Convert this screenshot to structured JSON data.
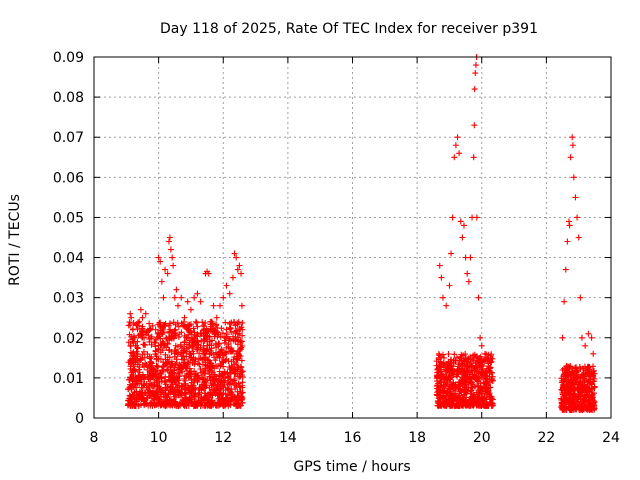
{
  "chart_data": {
    "type": "scatter",
    "title": "Day 118 of 2025, Rate Of TEC Index for receiver p391",
    "xlabel": "GPS time / hours",
    "ylabel": "ROTI / TECUs",
    "xlim": [
      8,
      24
    ],
    "ylim": [
      0,
      0.09
    ],
    "xticks": [
      8,
      10,
      12,
      14,
      16,
      18,
      20,
      22,
      24
    ],
    "yticks": [
      0,
      0.01,
      0.02,
      0.03,
      0.04,
      0.05,
      0.06,
      0.07,
      0.08,
      0.09
    ],
    "ytick_labels": [
      "0",
      "0.01",
      "0.02",
      "0.03",
      "0.04",
      "0.05",
      "0.06",
      "0.07",
      "0.08",
      "0.09"
    ],
    "grid": true,
    "marker": "+",
    "marker_color": "#ff0000",
    "series": [
      {
        "name": "ROTI",
        "points": [
          [
            9.12,
            0.026
          ],
          [
            9.15,
            0.025
          ],
          [
            9.2,
            0.022
          ],
          [
            9.25,
            0.02
          ],
          [
            9.3,
            0.018
          ],
          [
            9.35,
            0.016
          ],
          [
            9.4,
            0.024
          ],
          [
            9.45,
            0.027
          ],
          [
            9.5,
            0.025
          ],
          [
            9.55,
            0.02
          ],
          [
            9.6,
            0.026
          ],
          [
            9.65,
            0.012
          ],
          [
            9.7,
            0.008
          ],
          [
            9.75,
            0.014
          ],
          [
            9.8,
            0.011
          ],
          [
            9.85,
            0.006
          ],
          [
            9.95,
            0.02
          ],
          [
            10.0,
            0.04
          ],
          [
            10.05,
            0.039
          ],
          [
            10.1,
            0.034
          ],
          [
            10.15,
            0.03
          ],
          [
            10.2,
            0.037
          ],
          [
            10.28,
            0.036
          ],
          [
            10.32,
            0.044
          ],
          [
            10.35,
            0.045
          ],
          [
            10.38,
            0.042
          ],
          [
            10.42,
            0.04
          ],
          [
            10.45,
            0.038
          ],
          [
            10.5,
            0.03
          ],
          [
            10.55,
            0.032
          ],
          [
            10.6,
            0.028
          ],
          [
            10.7,
            0.03
          ],
          [
            10.8,
            0.025
          ],
          [
            10.9,
            0.029
          ],
          [
            11.0,
            0.027
          ],
          [
            11.1,
            0.03
          ],
          [
            11.2,
            0.031
          ],
          [
            11.3,
            0.029
          ],
          [
            11.45,
            0.036
          ],
          [
            11.5,
            0.0365
          ],
          [
            11.55,
            0.036
          ],
          [
            11.6,
            0.024
          ],
          [
            11.7,
            0.028
          ],
          [
            11.8,
            0.025
          ],
          [
            11.9,
            0.028
          ],
          [
            12.0,
            0.03
          ],
          [
            12.1,
            0.033
          ],
          [
            12.2,
            0.031
          ],
          [
            12.3,
            0.035
          ],
          [
            12.35,
            0.041
          ],
          [
            12.4,
            0.04
          ],
          [
            12.45,
            0.037
          ],
          [
            12.5,
            0.038
          ],
          [
            12.55,
            0.036
          ],
          [
            12.58,
            0.028
          ],
          [
            18.7,
            0.038
          ],
          [
            18.75,
            0.035
          ],
          [
            18.8,
            0.03
          ],
          [
            18.9,
            0.028
          ],
          [
            19.0,
            0.033
          ],
          [
            19.05,
            0.041
          ],
          [
            19.1,
            0.05
          ],
          [
            19.15,
            0.065
          ],
          [
            19.2,
            0.068
          ],
          [
            19.25,
            0.07
          ],
          [
            19.3,
            0.066
          ],
          [
            19.35,
            0.049
          ],
          [
            19.4,
            0.045
          ],
          [
            19.45,
            0.048
          ],
          [
            19.5,
            0.04
          ],
          [
            19.55,
            0.036
          ],
          [
            19.6,
            0.034
          ],
          [
            19.65,
            0.04
          ],
          [
            19.7,
            0.05
          ],
          [
            19.75,
            0.065
          ],
          [
            19.77,
            0.073
          ],
          [
            19.78,
            0.082
          ],
          [
            19.8,
            0.086
          ],
          [
            19.82,
            0.088
          ],
          [
            19.84,
            0.09
          ],
          [
            19.85,
            0.05
          ],
          [
            19.9,
            0.03
          ],
          [
            19.95,
            0.02
          ],
          [
            20.0,
            0.018
          ],
          [
            20.1,
            0.016
          ],
          [
            20.2,
            0.015
          ],
          [
            20.3,
            0.014
          ],
          [
            22.5,
            0.02
          ],
          [
            22.55,
            0.029
          ],
          [
            22.6,
            0.037
          ],
          [
            22.65,
            0.044
          ],
          [
            22.7,
            0.049
          ],
          [
            22.72,
            0.048
          ],
          [
            22.75,
            0.065
          ],
          [
            22.8,
            0.07
          ],
          [
            22.82,
            0.068
          ],
          [
            22.85,
            0.06
          ],
          [
            22.9,
            0.055
          ],
          [
            22.95,
            0.05
          ],
          [
            23.0,
            0.045
          ],
          [
            23.05,
            0.03
          ],
          [
            23.1,
            0.02
          ],
          [
            23.2,
            0.018
          ],
          [
            23.3,
            0.021
          ],
          [
            23.4,
            0.02
          ],
          [
            23.45,
            0.016
          ]
        ]
      }
    ],
    "dense_clusters": [
      {
        "x_range": [
          9.05,
          12.6
        ],
        "y_range": [
          0.003,
          0.024
        ],
        "count": 1400,
        "seed": 11
      },
      {
        "x_range": [
          18.6,
          20.35
        ],
        "y_range": [
          0.003,
          0.016
        ],
        "count": 700,
        "seed": 23
      },
      {
        "x_range": [
          22.45,
          23.5
        ],
        "y_range": [
          0.002,
          0.013
        ],
        "count": 450,
        "seed": 37
      }
    ]
  }
}
